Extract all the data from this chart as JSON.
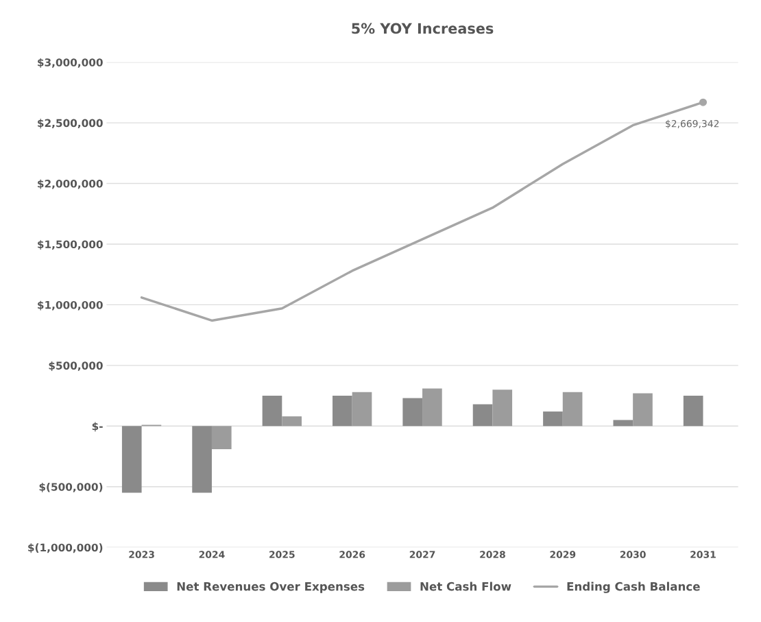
{
  "chart_data": {
    "type": "bar",
    "title": "5% YOY Increases",
    "categories": [
      "2023",
      "2024",
      "2025",
      "2026",
      "2027",
      "2028",
      "2029",
      "2030",
      "2031"
    ],
    "series": [
      {
        "name": "Net Revenues Over Expenses",
        "color": "#8a8a8a",
        "values": [
          -550000,
          -550000,
          250000,
          250000,
          230000,
          180000,
          120000,
          50000,
          250000
        ]
      },
      {
        "name": "Net Cash Flow",
        "color": "#9c9c9c",
        "values": [
          10000,
          -190000,
          80000,
          280000,
          310000,
          300000,
          280000,
          270000,
          null
        ]
      },
      {
        "name": "Ending Cash Balance",
        "type": "line",
        "color": "#a6a6a6",
        "values": [
          1060000,
          870000,
          970000,
          1280000,
          1540000,
          1800000,
          2160000,
          2480000,
          2669342
        ],
        "value_labels": [
          null,
          null,
          null,
          null,
          null,
          null,
          null,
          null,
          "$2,669,342"
        ]
      }
    ],
    "ylim": [
      -1000000,
      3000000
    ],
    "yticks": [
      {
        "value": -1000000,
        "label": "$(1,000,000)"
      },
      {
        "value": -500000,
        "label": "$(500,000)"
      },
      {
        "value": 0,
        "label": "$-"
      },
      {
        "value": 500000,
        "label": "$500,000"
      },
      {
        "value": 1000000,
        "label": "$1,000,000"
      },
      {
        "value": 1500000,
        "label": "$1,500,000"
      },
      {
        "value": 2000000,
        "label": "$2,000,000"
      },
      {
        "value": 2500000,
        "label": "$2,500,000"
      },
      {
        "value": 3000000,
        "label": "$3,000,000"
      }
    ],
    "grid": "y",
    "legend": "bottom"
  }
}
